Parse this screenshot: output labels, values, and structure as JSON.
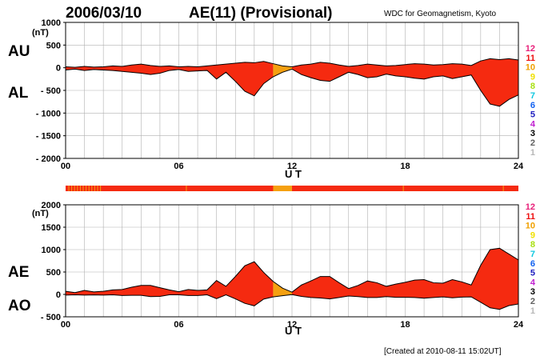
{
  "header": {
    "date": "2006/03/10",
    "title": "AE(11) (Provisional)",
    "source": "WDC for Geomagnetism, Kyoto"
  },
  "footer": {
    "created": "[Created at 2010-08-11 15:02UT]"
  },
  "colors": {
    "fill_main": "#f52a10",
    "fill_alt": "#f5a010",
    "grid": "#b0b0b0",
    "outline": "#000000",
    "bar_tick": "#f5a010"
  },
  "legend": {
    "items": [
      {
        "label": "12",
        "color": "#e8207a"
      },
      {
        "label": "11",
        "color": "#ee1010"
      },
      {
        "label": "10",
        "color": "#f0a000"
      },
      {
        "label": "9",
        "color": "#f0e000"
      },
      {
        "label": "8",
        "color": "#a8e010"
      },
      {
        "label": "7",
        "color": "#10c8e0"
      },
      {
        "label": "6",
        "color": "#1060f0"
      },
      {
        "label": "5",
        "color": "#2020c0"
      },
      {
        "label": "4",
        "color": "#c020d0"
      },
      {
        "label": "3",
        "color": "#000000"
      },
      {
        "label": "2",
        "color": "#606060"
      },
      {
        "label": "1",
        "color": "#b8b8b8"
      }
    ]
  },
  "chart_data": [
    {
      "type": "area",
      "title": "2006/03/10 AE(11) (Provisional)",
      "unit": "(nT)",
      "ylabel_top": "AU",
      "ylabel_bottom": "AL",
      "xlabel": "U T",
      "xlim": [
        0,
        24
      ],
      "ylim": [
        -2000,
        1000
      ],
      "xticks": [
        "00",
        "06",
        "12",
        "18",
        "24"
      ],
      "yticks": [
        "1000",
        "500",
        "0",
        "- 500",
        "- 1000",
        "- 1500",
        "- 2000"
      ],
      "ytick_values": [
        1000,
        500,
        0,
        -500,
        -1000,
        -1500,
        -2000
      ],
      "orange_intervals": [
        [
          11.0,
          12.0
        ]
      ],
      "series": [
        {
          "name": "AU",
          "x": [
            0,
            0.5,
            1,
            1.5,
            2,
            2.5,
            3,
            3.5,
            4,
            4.5,
            5,
            5.5,
            6,
            6.5,
            7,
            7.5,
            8,
            8.5,
            9,
            9.5,
            10,
            10.5,
            11,
            11.5,
            12,
            12.5,
            13,
            13.5,
            14,
            14.5,
            15,
            15.5,
            16,
            16.5,
            17,
            17.5,
            18,
            18.5,
            19,
            19.5,
            20,
            20.5,
            21,
            21.5,
            22,
            22.5,
            23,
            23.5,
            24
          ],
          "values": [
            20,
            10,
            30,
            15,
            20,
            40,
            30,
            60,
            80,
            50,
            30,
            40,
            20,
            30,
            20,
            40,
            60,
            80,
            100,
            120,
            110,
            140,
            90,
            40,
            20,
            60,
            80,
            120,
            100,
            60,
            30,
            50,
            80,
            60,
            40,
            50,
            70,
            90,
            80,
            60,
            70,
            90,
            80,
            50,
            150,
            200,
            180,
            200,
            170
          ]
        },
        {
          "name": "AL",
          "x": [
            0,
            0.5,
            1,
            1.5,
            2,
            2.5,
            3,
            3.5,
            4,
            4.5,
            5,
            5.5,
            6,
            6.5,
            7,
            7.5,
            8,
            8.5,
            9,
            9.5,
            10,
            10.5,
            11,
            11.5,
            12,
            12.5,
            13,
            13.5,
            14,
            14.5,
            15,
            15.5,
            16,
            16.5,
            17,
            17.5,
            18,
            18.5,
            19,
            19.5,
            20,
            20.5,
            21,
            21.5,
            22,
            22.5,
            23,
            23.5,
            24
          ],
          "values": [
            -50,
            -30,
            -60,
            -40,
            -50,
            -60,
            -80,
            -100,
            -120,
            -150,
            -120,
            -60,
            -40,
            -80,
            -70,
            -60,
            -250,
            -100,
            -300,
            -520,
            -620,
            -350,
            -200,
            -100,
            -30,
            -150,
            -220,
            -280,
            -300,
            -200,
            -100,
            -150,
            -220,
            -200,
            -140,
            -180,
            -200,
            -230,
            -250,
            -200,
            -180,
            -240,
            -200,
            -160,
            -500,
            -800,
            -850,
            -700,
            -600
          ]
        }
      ]
    },
    {
      "type": "area",
      "unit": "(nT)",
      "ylabel_top": "AE",
      "ylabel_bottom": "AO",
      "xlabel": "U T",
      "xlim": [
        0,
        24
      ],
      "ylim": [
        -500,
        2000
      ],
      "xticks": [
        "00",
        "06",
        "12",
        "18",
        "24"
      ],
      "yticks": [
        "2000",
        "1500",
        "1000",
        "500",
        "0",
        "- 500"
      ],
      "ytick_values": [
        2000,
        1500,
        1000,
        500,
        0,
        -500
      ],
      "orange_intervals": [
        [
          11.0,
          12.0
        ]
      ],
      "series": [
        {
          "name": "AE",
          "x": [
            0,
            0.5,
            1,
            1.5,
            2,
            2.5,
            3,
            3.5,
            4,
            4.5,
            5,
            5.5,
            6,
            6.5,
            7,
            7.5,
            8,
            8.5,
            9,
            9.5,
            10,
            10.5,
            11,
            11.5,
            12,
            12.5,
            13,
            13.5,
            14,
            14.5,
            15,
            15.5,
            16,
            16.5,
            17,
            17.5,
            18,
            18.5,
            19,
            19.5,
            20,
            20.5,
            21,
            21.5,
            22,
            22.5,
            23,
            23.5,
            24
          ],
          "values": [
            70,
            40,
            90,
            55,
            70,
            100,
            110,
            160,
            200,
            200,
            150,
            100,
            60,
            110,
            90,
            100,
            310,
            180,
            400,
            640,
            730,
            490,
            290,
            140,
            50,
            210,
            300,
            400,
            400,
            260,
            130,
            200,
            300,
            260,
            180,
            230,
            270,
            320,
            330,
            260,
            250,
            330,
            280,
            210,
            650,
            1000,
            1030,
            900,
            770
          ]
        },
        {
          "name": "AO",
          "x": [
            0,
            0.5,
            1,
            1.5,
            2,
            2.5,
            3,
            3.5,
            4,
            4.5,
            5,
            5.5,
            6,
            6.5,
            7,
            7.5,
            8,
            8.5,
            9,
            9.5,
            10,
            10.5,
            11,
            11.5,
            12,
            12.5,
            13,
            13.5,
            14,
            14.5,
            15,
            15.5,
            16,
            16.5,
            17,
            17.5,
            18,
            18.5,
            19,
            19.5,
            20,
            20.5,
            21,
            21.5,
            22,
            22.5,
            23,
            23.5,
            24
          ],
          "values": [
            -15,
            -10,
            -15,
            -12,
            -15,
            -10,
            -25,
            -20,
            -20,
            -50,
            -45,
            -10,
            -10,
            -25,
            -25,
            -10,
            -95,
            -10,
            -100,
            -200,
            -255,
            -105,
            -55,
            -30,
            -5,
            -45,
            -70,
            -80,
            -100,
            -70,
            -35,
            -50,
            -70,
            -70,
            -50,
            -65,
            -65,
            -70,
            -85,
            -70,
            -55,
            -75,
            -60,
            -55,
            -175,
            -300,
            -335,
            -250,
            -215
          ]
        }
      ]
    }
  ]
}
